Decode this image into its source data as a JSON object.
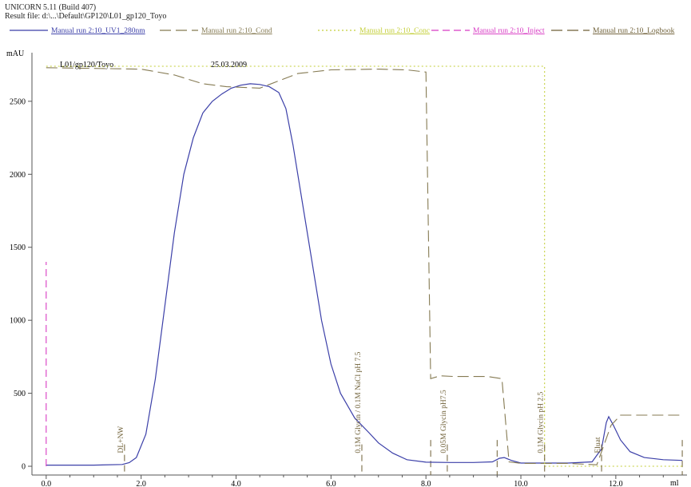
{
  "header": {
    "software": "UNICORN 5.11 (Build 407)",
    "result_file": "Result file: d:\\...\\Default\\GP120\\L01_gp120_Toyo"
  },
  "chart_data": {
    "type": "line",
    "run_label": "L01/gp120/Toyo",
    "date": "25.03.2009",
    "xlabel": "ml",
    "ylabel": "mAU",
    "xlim": [
      -0.3,
      13.5
    ],
    "ylim": [
      -60,
      2800
    ],
    "x_ticks": [
      0.0,
      2.0,
      4.0,
      6.0,
      8.0,
      10.0,
      12.0
    ],
    "x_tick_labels": [
      "0.0",
      "2.0",
      "4.0",
      "6.0",
      "8.0",
      "10.0",
      "12.0"
    ],
    "y_ticks": [
      0,
      500,
      1000,
      1500,
      2000,
      2500
    ],
    "grid": false,
    "legend_position": "top",
    "series": [
      {
        "name": "Manual run 2:10_UV1_280nm",
        "color": "#3b3fa8",
        "style": "solid",
        "x": [
          0.0,
          1.0,
          1.6,
          1.75,
          1.9,
          2.1,
          2.3,
          2.5,
          2.7,
          2.9,
          3.1,
          3.3,
          3.5,
          3.7,
          3.9,
          4.1,
          4.3,
          4.5,
          4.7,
          4.9,
          5.05,
          5.2,
          5.4,
          5.6,
          5.8,
          6.0,
          6.2,
          6.5,
          6.8,
          7.0,
          7.3,
          7.6,
          8.0,
          8.5,
          9.0,
          9.4,
          9.55,
          9.65,
          9.8,
          10.0,
          10.5,
          11.0,
          11.5,
          11.7,
          11.8,
          11.85,
          11.95,
          12.1,
          12.3,
          12.6,
          13.0,
          13.4
        ],
        "y": [
          8,
          8,
          12,
          25,
          60,
          220,
          600,
          1100,
          1600,
          2000,
          2250,
          2420,
          2500,
          2550,
          2590,
          2610,
          2620,
          2615,
          2600,
          2560,
          2450,
          2200,
          1800,
          1400,
          1000,
          700,
          500,
          330,
          230,
          160,
          90,
          45,
          28,
          26,
          26,
          30,
          55,
          60,
          40,
          22,
          22,
          22,
          30,
          120,
          300,
          340,
          280,
          180,
          100,
          60,
          45,
          40
        ]
      },
      {
        "name": "Manual run 2:10_Cond",
        "color": "#857a52",
        "style": "longdash",
        "x": [
          0.0,
          2.0,
          2.7,
          3.3,
          3.8,
          4.5,
          5.3,
          6.0,
          7.0,
          7.6,
          8.0,
          8.1,
          8.3,
          8.6,
          9.3,
          9.6,
          9.75,
          10.0,
          11.0,
          11.6,
          11.9,
          12.1,
          13.4
        ],
        "y": [
          2730,
          2720,
          2680,
          2620,
          2600,
          2590,
          2690,
          2715,
          2720,
          2715,
          2700,
          600,
          620,
          615,
          615,
          600,
          30,
          20,
          20,
          10,
          280,
          350,
          350
        ]
      },
      {
        "name": "Manual run 2:10_Conc",
        "color": "#c4cf3a",
        "style": "dotted",
        "x": [
          0.0,
          10.5,
          10.5,
          13.4
        ],
        "y": [
          2740,
          2740,
          0,
          0
        ]
      },
      {
        "name": "Manual run 2:10_Inject",
        "color": "#d83ac4",
        "style": "dashed",
        "x": [
          0.0,
          0.0
        ],
        "y": [
          0,
          1400
        ]
      },
      {
        "name": "Manual run 2:10_Logbook",
        "color": "#6e5f36",
        "style": "longdash",
        "x": [],
        "y": []
      }
    ],
    "annotations": [
      {
        "text": "DL+NW",
        "x": 1.65
      },
      {
        "text": "0.1M Glycin / 0.1M NaCl pH 7.5",
        "x": 6.65
      },
      {
        "text": "0.05M Glycin pH7.5",
        "x": 8.45
      },
      {
        "text": "0.1M Glycin pH 2.5",
        "x": 10.5
      },
      {
        "text": "Eluat",
        "x": 11.7
      }
    ],
    "marker_lines": [
      8.1,
      9.5,
      13.4
    ]
  }
}
